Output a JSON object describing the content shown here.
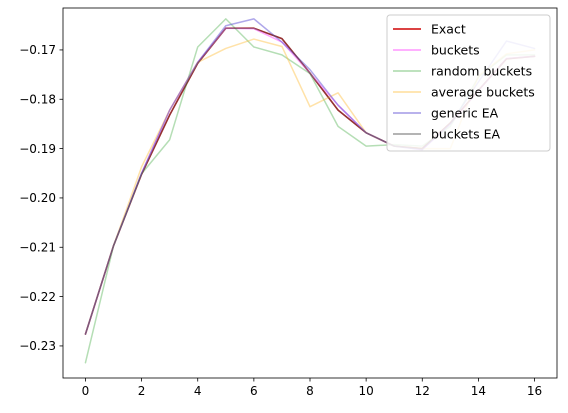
{
  "chart_data": {
    "type": "line",
    "title": "",
    "xlabel": "",
    "ylabel": "",
    "xlim": [
      -0.8,
      16.8
    ],
    "ylim": [
      -0.2365,
      -0.1615
    ],
    "xticks": [
      0,
      2,
      4,
      6,
      8,
      10,
      12,
      14,
      16
    ],
    "yticks": [
      -0.23,
      -0.22,
      -0.21,
      -0.2,
      -0.19,
      -0.18,
      -0.17
    ],
    "ytick_labels": [
      "−0.23",
      "−0.22",
      "−0.21",
      "−0.20",
      "−0.19",
      "−0.18",
      "−0.17"
    ],
    "legend_position": "top-right",
    "series": [
      {
        "name": "Exact",
        "color": "#d62728",
        "opacity": 1.0,
        "width": 1.6,
        "x": [
          0,
          1,
          2,
          3,
          4,
          5,
          6,
          7,
          8,
          9,
          10,
          11,
          12,
          13,
          14,
          15,
          16
        ],
        "y": [
          -0.2276,
          -0.2097,
          -0.1952,
          -0.1832,
          -0.1727,
          -0.1656,
          -0.1656,
          -0.1677,
          -0.1747,
          -0.1822,
          -0.1868,
          -0.1895,
          -0.19,
          -0.1848,
          -0.1782,
          -0.1718,
          -0.1713
        ]
      },
      {
        "name": "buckets",
        "color": "#ff7fff",
        "opacity": 0.7,
        "width": 1.5,
        "x": [
          0,
          1,
          2,
          3,
          4,
          5,
          6,
          7,
          8,
          9,
          10,
          11,
          12,
          13,
          14,
          15,
          16
        ],
        "y": [
          -0.2276,
          -0.2097,
          -0.195,
          -0.1822,
          -0.1725,
          -0.1656,
          -0.1657,
          -0.1684,
          -0.1747,
          -0.1812,
          -0.1868,
          -0.1895,
          -0.1902,
          -0.185,
          -0.1783,
          -0.1717,
          -0.1713
        ]
      },
      {
        "name": "random buckets",
        "color": "#2ca02c",
        "opacity": 0.35,
        "width": 1.5,
        "x": [
          0,
          1,
          2,
          3,
          4,
          5,
          6,
          7,
          8,
          9,
          10,
          11,
          12,
          13,
          14,
          15,
          16
        ],
        "y": [
          -0.2334,
          -0.2097,
          -0.1951,
          -0.1882,
          -0.1694,
          -0.1637,
          -0.1694,
          -0.171,
          -0.1748,
          -0.1855,
          -0.1895,
          -0.1892,
          -0.1895,
          -0.1855,
          -0.1755,
          -0.171,
          -0.171
        ]
      },
      {
        "name": "average buckets",
        "color": "#ffbf3f",
        "opacity": 0.45,
        "width": 1.5,
        "x": [
          0,
          1,
          2,
          3,
          4,
          5,
          6,
          7,
          8,
          9,
          10,
          11,
          12,
          13,
          14,
          15,
          16
        ],
        "y": [
          -0.2276,
          -0.2097,
          -0.1937,
          -0.1822,
          -0.1725,
          -0.1697,
          -0.1678,
          -0.1693,
          -0.1815,
          -0.1787,
          -0.1868,
          -0.1895,
          -0.19,
          -0.19,
          -0.1753,
          -0.1708,
          -0.17
        ]
      },
      {
        "name": "generic EA",
        "color": "#5f4fd6",
        "opacity": 0.5,
        "width": 1.5,
        "x": [
          0,
          1,
          2,
          3,
          4,
          5,
          6,
          7,
          8,
          9,
          10,
          11,
          12,
          13,
          14,
          15,
          16
        ],
        "y": [
          -0.2276,
          -0.2097,
          -0.195,
          -0.1822,
          -0.1725,
          -0.1651,
          -0.1637,
          -0.1684,
          -0.174,
          -0.1812,
          -0.1868,
          -0.1895,
          -0.1902,
          -0.185,
          -0.1765,
          -0.1682,
          -0.1697
        ]
      },
      {
        "name": "buckets EA",
        "color": "#404040",
        "opacity": 0.45,
        "width": 1.5,
        "x": [
          0,
          1,
          2,
          3,
          4,
          5,
          6,
          7,
          8,
          9,
          10,
          11,
          12,
          13,
          14,
          15,
          16
        ],
        "y": [
          -0.2276,
          -0.2097,
          -0.1952,
          -0.1832,
          -0.1727,
          -0.1656,
          -0.1656,
          -0.1677,
          -0.1747,
          -0.1822,
          -0.1868,
          -0.1895,
          -0.19,
          -0.1848,
          -0.1782,
          -0.1718,
          -0.1713
        ]
      }
    ]
  }
}
